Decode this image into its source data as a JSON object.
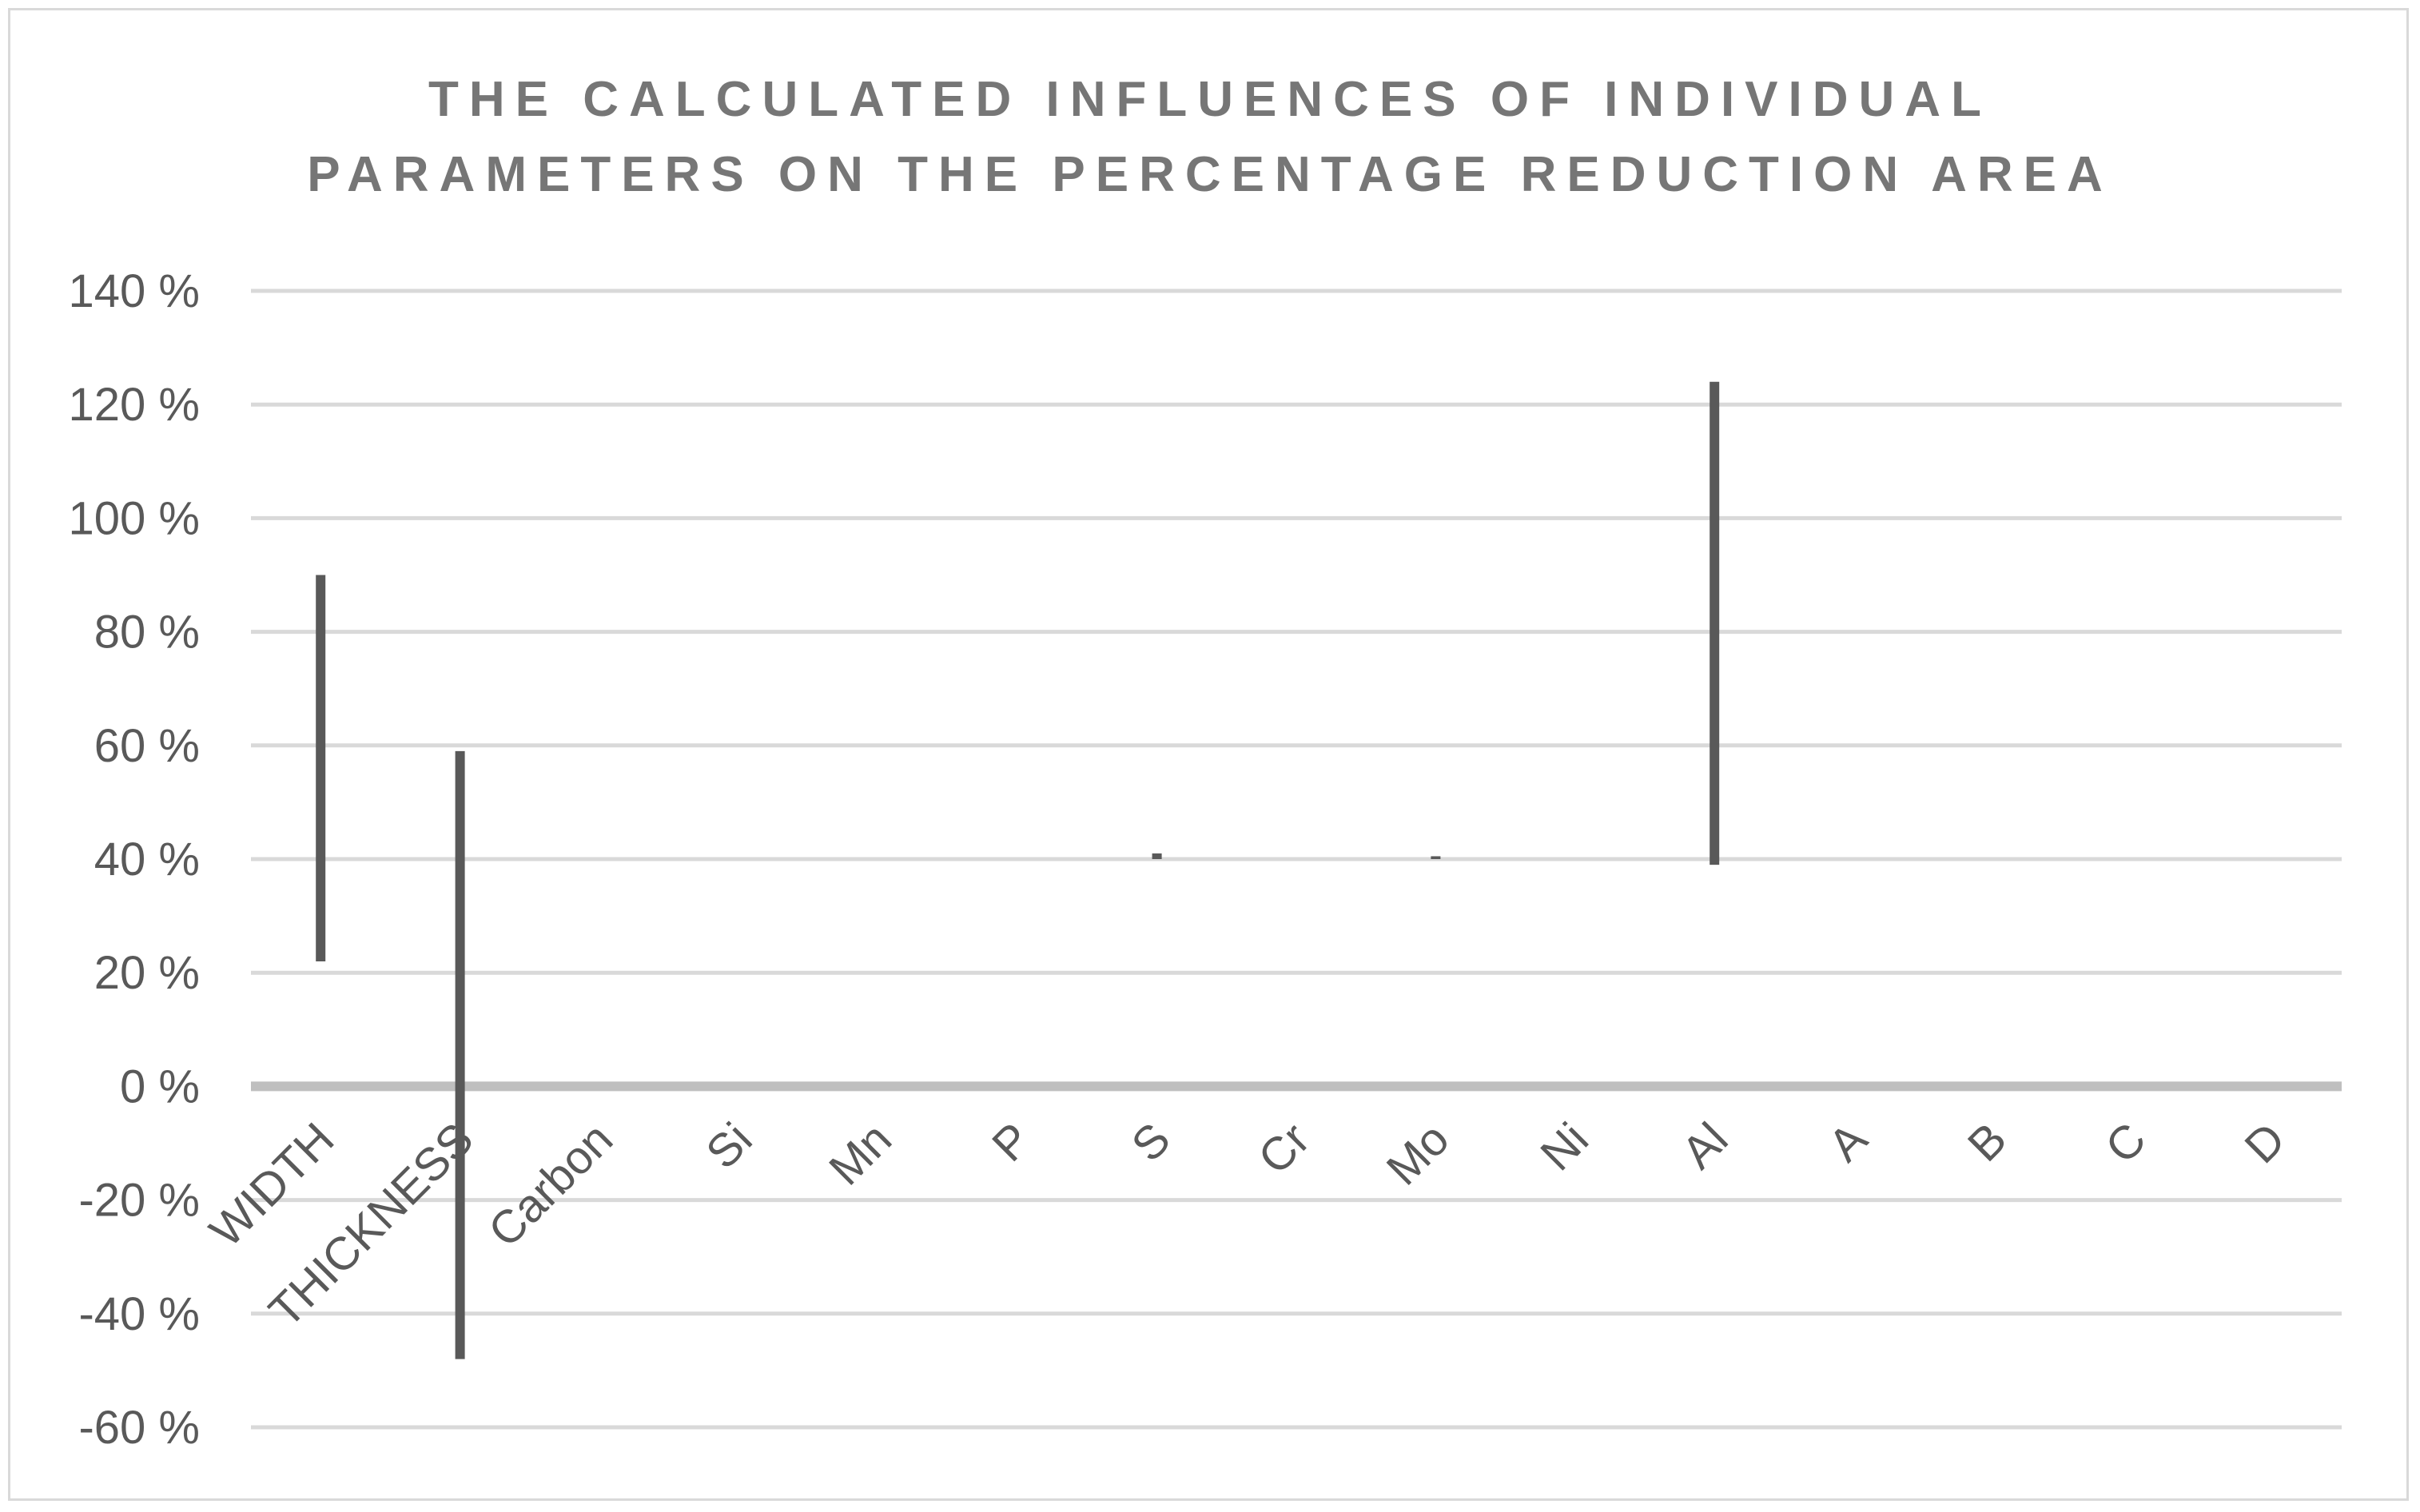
{
  "chart_data": {
    "type": "range-bar",
    "title": [
      "THE CALCULATED INFLUENCES OF INDIVIDUAL",
      "PARAMETERS ON THE PERCENTAGE REDUCTION AREA"
    ],
    "xlabel": "",
    "ylabel": "",
    "ylim": [
      -60,
      140
    ],
    "y_tick_step": 20,
    "y_tick_suffix": " %",
    "grid": true,
    "legend": "none",
    "categories": [
      "WIDTH",
      "THICKNESS",
      "Carbon",
      "Si",
      "Mn",
      "P",
      "S",
      "Cr",
      "Mo",
      "Ni",
      "Al",
      "A",
      "B",
      "C",
      "D"
    ],
    "ranges": [
      {
        "category": "WIDTH",
        "low": 22,
        "high": 90
      },
      {
        "category": "THICKNESS",
        "low": -48,
        "high": 59
      },
      {
        "category": "Carbon",
        "low": 40,
        "high": 40
      },
      {
        "category": "Si",
        "low": 40,
        "high": 40
      },
      {
        "category": "Mn",
        "low": 40,
        "high": 40
      },
      {
        "category": "P",
        "low": 40,
        "high": 40
      },
      {
        "category": "S",
        "low": 40,
        "high": 41
      },
      {
        "category": "Cr",
        "low": 40,
        "high": 40
      },
      {
        "category": "Mo",
        "low": 40,
        "high": 40.5
      },
      {
        "category": "Ni",
        "low": 40,
        "high": 40
      },
      {
        "category": "Al",
        "low": 39,
        "high": 124
      },
      {
        "category": "A",
        "low": 40,
        "high": 40
      },
      {
        "category": "B",
        "low": 40,
        "high": 40
      },
      {
        "category": "C",
        "low": 40,
        "high": 40
      },
      {
        "category": "D",
        "low": 40,
        "high": 40
      }
    ],
    "colors": {
      "bar": "#595959",
      "grid": "#d9d9d9",
      "zero_line": "#bfbfbf"
    }
  }
}
